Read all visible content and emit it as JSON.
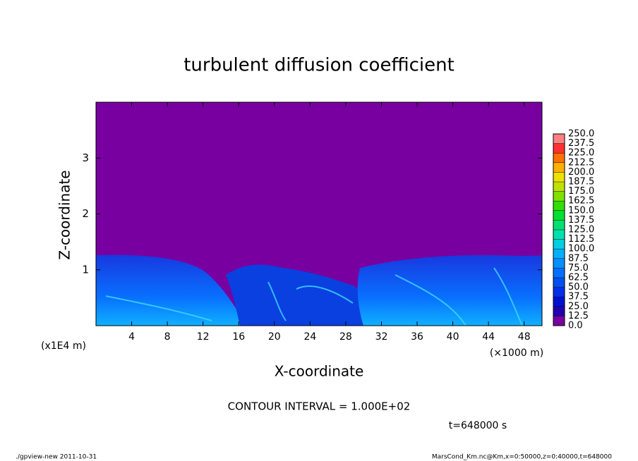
{
  "chart_data": {
    "type": "contour",
    "title": "turbulent diffusion coefficient",
    "xlabel": "X-coordinate",
    "ylabel": "Z-coordinate",
    "x_unit": "(×1000 m)",
    "y_unit": "(x1E4 m)",
    "xlim": [
      0,
      50
    ],
    "ylim": [
      0,
      4
    ],
    "xticks": [
      4,
      8,
      12,
      16,
      20,
      24,
      28,
      32,
      36,
      40,
      44,
      48
    ],
    "yticks": [
      1,
      2,
      3
    ],
    "colorbar_ticks": [
      {
        "value": 0,
        "label": "0.0"
      },
      12.5,
      {
        "value": 25,
        "label": "25.0"
      },
      37.5,
      {
        "value": 50,
        "label": "50.0"
      },
      62.5,
      {
        "value": 75,
        "label": "75.0"
      },
      87.5,
      {
        "value": 100,
        "label": "100.0"
      },
      112.5,
      {
        "value": 125,
        "label": "125.0"
      },
      137.5,
      {
        "value": 150,
        "label": "150.0"
      },
      162.5,
      {
        "value": 175,
        "label": "175.0"
      },
      187.5,
      {
        "value": 200,
        "label": "200.0"
      },
      212.5,
      {
        "value": 225,
        "label": "225.0"
      },
      237.5,
      {
        "value": 250,
        "label": "250.0"
      }
    ],
    "colorbar_colors": [
      "#7800a0",
      "#2000b0",
      "#0010d0",
      "#0030e8",
      "#0050f0",
      "#0070ff",
      "#0090ff",
      "#00b0ff",
      "#00d0e0",
      "#00e0b0",
      "#00e070",
      "#00e030",
      "#30e000",
      "#80e000",
      "#c0e000",
      "#f0e000",
      "#ffb000",
      "#ff7000",
      "#ff3030",
      "#ff8080"
    ],
    "annotations": [
      "CONTOUR INTERVAL = 1.000E+02",
      "t=648000 s"
    ],
    "footer_left": "./gpview-new   2011-10-31",
    "footer_right": "MarsCond_Km.nc@Km,x=0:50000,z=0:40000,t=648000"
  }
}
